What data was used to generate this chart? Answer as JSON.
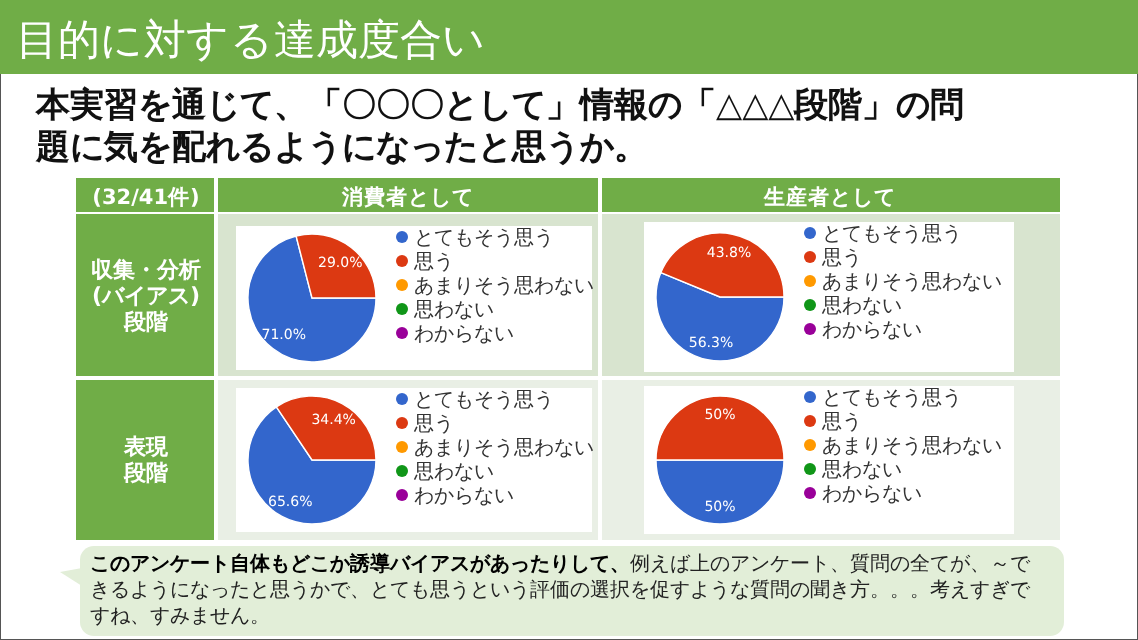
{
  "chart_data": [
    {
      "type": "other",
      "title": "目的に対する達成度合い",
      "subtitle": "本実習を通じて、「〇〇〇として」情報の「△△△段階」の問題に気を配れるようになったと思うか。",
      "annotations": [
        "(32/41件)",
        "消費者として",
        "生産者として",
        "収集・分析",
        "(バイアス)",
        "段階",
        "表現",
        "段階",
        "このアンケート自体もどこか誘導バイアスがあったりして、",
        "例えば上のアンケート、質問の全てが、～できるようになったと思うかで、とても思うという評価の選択を促すような質問の聞き方。。。考えすぎですね、すみません。"
      ]
    },
    {
      "type": "pie",
      "categories": [
        "とてもそう思う",
        "思う",
        "あまりそう思わない",
        "思わない",
        "わからない"
      ],
      "values": [
        71.0,
        29.0,
        0,
        0,
        0
      ],
      "colors": [
        "#3366cc",
        "#dc3912",
        "#ff9900",
        "#109618",
        "#990099"
      ],
      "value_labels": [
        "71.0%",
        "29.0%",
        null,
        null,
        null
      ],
      "legend": "right"
    },
    {
      "type": "pie",
      "categories": [
        "とてもそう思う",
        "思う",
        "あまりそう思わない",
        "思わない",
        "わからない"
      ],
      "values": [
        56.3,
        43.8,
        0,
        0,
        0
      ],
      "colors": [
        "#3366cc",
        "#dc3912",
        "#ff9900",
        "#109618",
        "#990099"
      ],
      "value_labels": [
        "56.3%",
        "43.8%",
        null,
        null,
        null
      ],
      "legend": "right"
    },
    {
      "type": "pie",
      "categories": [
        "とてもそう思う",
        "思う",
        "あまりそう思わない",
        "思わない",
        "わからない"
      ],
      "values": [
        65.6,
        34.4,
        0,
        0,
        0
      ],
      "colors": [
        "#3366cc",
        "#dc3912",
        "#ff9900",
        "#109618",
        "#990099"
      ],
      "value_labels": [
        "65.6%",
        "34.4%",
        null,
        null,
        null
      ],
      "legend": "right"
    },
    {
      "type": "pie",
      "categories": [
        "とてもそう思う",
        "思う",
        "あまりそう思わない",
        "思わない",
        "わからない"
      ],
      "values": [
        50,
        50,
        0,
        0,
        0
      ],
      "colors": [
        "#3366cc",
        "#dc3912",
        "#ff9900",
        "#109618",
        "#990099"
      ],
      "value_labels": [
        "50%",
        "50%",
        null,
        null,
        null
      ],
      "legend": "right"
    }
  ]
}
